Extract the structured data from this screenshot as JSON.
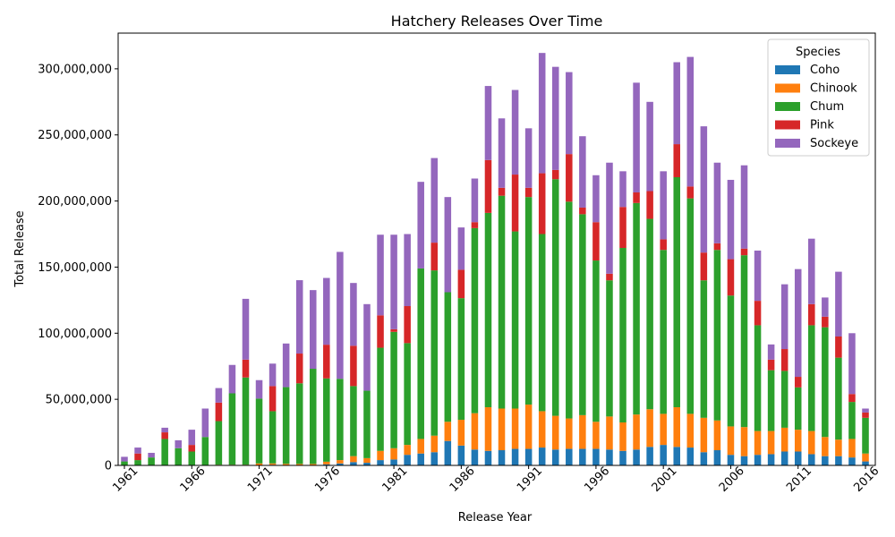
{
  "chart_data": {
    "type": "bar",
    "stacked": true,
    "title": "Hatchery Releases Over Time",
    "xlabel": "Release Year",
    "ylabel": "Total Release",
    "ylim": [
      0,
      327000000
    ],
    "yticks": [
      0,
      50000000,
      100000000,
      150000000,
      200000000,
      250000000,
      300000000
    ],
    "ytick_labels": [
      "0",
      "50,000,000",
      "100,000,000",
      "150,000,000",
      "200,000,000",
      "250,000,000",
      "300,000,000"
    ],
    "xtick_labels": [
      "1961",
      "1966",
      "1971",
      "1976",
      "1981",
      "1986",
      "1991",
      "1996",
      "2001",
      "2006",
      "2011",
      "2016"
    ],
    "xtick_label_rotation_deg": 45,
    "grid": false,
    "legend": {
      "title": "Species",
      "placement": "top-right"
    },
    "categories": [
      "1961",
      "1962",
      "1963",
      "1964",
      "1965",
      "1966",
      "1967",
      "1968",
      "1969",
      "1970",
      "1971",
      "1972",
      "1973",
      "1974",
      "1975",
      "1976",
      "1977",
      "1978",
      "1979",
      "1980",
      "1981",
      "1982",
      "1983",
      "1984",
      "1985",
      "1986",
      "1987",
      "1988",
      "1989",
      "1990",
      "1991",
      "1992",
      "1993",
      "1994",
      "1995",
      "1996",
      "1997",
      "1998",
      "1999",
      "2000",
      "2001",
      "2002",
      "2003",
      "2004",
      "2005",
      "2006",
      "2007",
      "2008",
      "2009",
      "2010",
      "2011",
      "2012",
      "2013",
      "2014",
      "2015",
      "2016"
    ],
    "series": [
      {
        "name": "Coho",
        "color": "#1f77b4",
        "values": [
          0,
          0,
          0,
          0,
          0,
          0,
          0,
          0,
          0,
          0,
          0,
          500000,
          200000,
          300000,
          300000,
          800000,
          1500000,
          2500000,
          2000000,
          4000000,
          4500000,
          8000000,
          9000000,
          10000000,
          18500000,
          15000000,
          12000000,
          11000000,
          11500000,
          12500000,
          12500000,
          13500000,
          12000000,
          12500000,
          12500000,
          12500000,
          12000000,
          11000000,
          12000000,
          14000000,
          15500000,
          14000000,
          13500000,
          10000000,
          11500000,
          8000000,
          7000000,
          8000000,
          8500000,
          10500000,
          10500000,
          8500000,
          7000000,
          7000000,
          6000000,
          3000000
        ]
      },
      {
        "name": "Chinook",
        "color": "#ff7f0e",
        "values": [
          0,
          0,
          0,
          0,
          0,
          0,
          0,
          500000,
          500000,
          500000,
          1500000,
          1000000,
          1000000,
          800000,
          800000,
          2000000,
          2500000,
          4500000,
          3500000,
          7000000,
          8500000,
          7500000,
          11000000,
          12500000,
          14500000,
          19500000,
          27500000,
          33000000,
          31500000,
          30500000,
          33500000,
          27500000,
          25500000,
          23000000,
          25500000,
          20500000,
          25000000,
          21500000,
          26500000,
          28500000,
          23500000,
          30000000,
          25500000,
          26000000,
          22500000,
          21500000,
          22000000,
          18000000,
          17500000,
          18000000,
          16500000,
          17500000,
          14500000,
          12500000,
          14000000,
          6000000
        ]
      },
      {
        "name": "Chum",
        "color": "#2ca02c",
        "values": [
          3000000,
          4000000,
          6000000,
          20000000,
          13000000,
          10500000,
          21500000,
          33000000,
          54000000,
          66000000,
          49000000,
          39500000,
          58000000,
          61000000,
          72000000,
          63000000,
          61500000,
          53000000,
          51000000,
          78000000,
          88000000,
          77000000,
          129000000,
          125000000,
          98000000,
          92000000,
          140000000,
          147000000,
          161000000,
          134000000,
          157000000,
          134000000,
          179000000,
          164000000,
          152000000,
          122000000,
          103000000,
          132000000,
          160000000,
          144000000,
          124000000,
          174000000,
          163000000,
          104000000,
          129000000,
          99000000,
          130000000,
          80000000,
          46000000,
          43000000,
          32000000,
          80000000,
          83000000,
          62000000,
          28000000,
          27000000
        ]
      },
      {
        "name": "Pink",
        "color": "#d62728",
        "values": [
          0,
          5000000,
          0,
          5000000,
          0,
          5000000,
          0,
          14000000,
          0,
          13500000,
          0,
          19000000,
          0,
          22500000,
          0,
          25500000,
          0,
          30500000,
          0,
          24500000,
          2000000,
          28000000,
          0,
          21000000,
          0,
          21500000,
          4500000,
          40000000,
          6000000,
          43000000,
          7000000,
          46000000,
          7000000,
          36000000,
          5000000,
          29000000,
          5000000,
          31000000,
          8000000,
          21000000,
          8000000,
          25000000,
          9000000,
          21000000,
          5000000,
          27500000,
          5000000,
          18500000,
          8000000,
          16500000,
          8000000,
          16000000,
          8000000,
          16000000,
          6000000,
          4000000
        ]
      },
      {
        "name": "Sockeye",
        "color": "#9467bd",
        "values": [
          3500000,
          4500000,
          3500000,
          3500000,
          6000000,
          11500000,
          21500000,
          11000000,
          21500000,
          46000000,
          14000000,
          17000000,
          33000000,
          55500000,
          59500000,
          50500000,
          96000000,
          47500000,
          65500000,
          61000000,
          71500000,
          54500000,
          65500000,
          64000000,
          72000000,
          32000000,
          33000000,
          56000000,
          52500000,
          64000000,
          45000000,
          91000000,
          78000000,
          62000000,
          54000000,
          35500000,
          84000000,
          27000000,
          83000000,
          67500000,
          51500000,
          62000000,
          98000000,
          95500000,
          61000000,
          60000000,
          63000000,
          38000000,
          11500000,
          49000000,
          81500000,
          49500000,
          14500000,
          49000000,
          46000000,
          3000000
        ]
      }
    ]
  }
}
